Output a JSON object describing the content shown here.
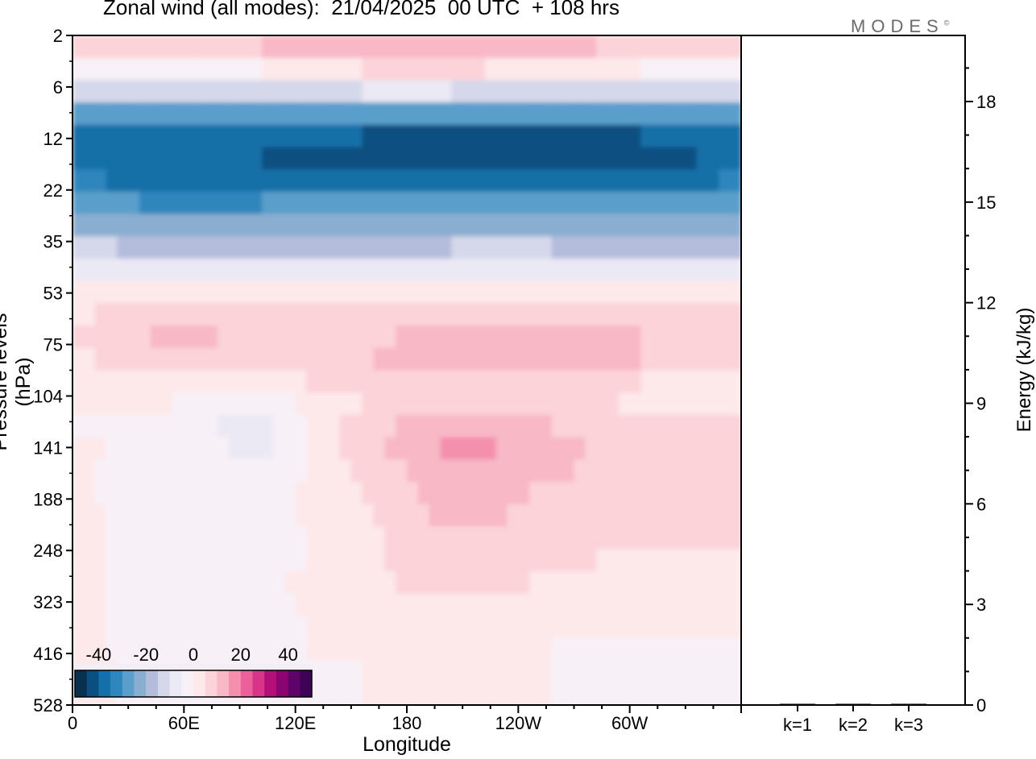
{
  "title": "Zonal wind (all modes):  21/04/2025  00 UTC  + 108 hrs",
  "brand": "MODES",
  "brand_mark": "©",
  "chart_data": [
    {
      "type": "heatmap",
      "title": "Zonal wind (all modes):  21/04/2025  00 UTC  + 108 hrs",
      "xlabel": "Longitude",
      "ylabel": "Pressure levels (hPa)",
      "x_ticks": [
        "0",
        "60E",
        "120E",
        "180",
        "120W",
        "60W"
      ],
      "x_tick_degrees": [
        0,
        60,
        120,
        180,
        240,
        300
      ],
      "x_range_degrees": [
        0,
        360
      ],
      "y_ticks": [
        "2",
        "6",
        "12",
        "22",
        "35",
        "53",
        "75",
        "104",
        "141",
        "188",
        "248",
        "323",
        "416",
        "528"
      ],
      "y_axis": "pressure levels, top to bottom",
      "colorbar": {
        "tick_labels": [
          "-40",
          "-20",
          "0",
          "20",
          "40"
        ],
        "ticks": [
          -40,
          -20,
          0,
          20,
          40
        ],
        "boundaries": [
          -50,
          -45,
          -40,
          -35,
          -30,
          -25,
          -20,
          -15,
          -10,
          -5,
          0,
          5,
          10,
          15,
          20,
          25,
          30,
          35,
          40,
          45,
          50
        ],
        "colors": [
          "#08304f",
          "#0a4f80",
          "#1470a8",
          "#2e86bd",
          "#5a9fcb",
          "#8aaed0",
          "#b4bcdc",
          "#d5d8ea",
          "#ebe9f4",
          "#f7f1f7",
          "#fde8ea",
          "#fbd3d8",
          "#f8b8c6",
          "#f490ae",
          "#ec5f9b",
          "#d83488",
          "#b40f79",
          "#8a0570",
          "#5e036a",
          "#3e0358"
        ],
        "placement": "bottom-left inside plot"
      },
      "field_rows": [
        {
          "level": "2",
          "values": [
            9,
            9,
            10,
            12,
            13,
            11,
            9,
            8
          ]
        },
        {
          "level": "3",
          "values": [
            0,
            -3,
            0,
            5,
            6,
            3,
            0,
            -1
          ]
        },
        {
          "level": "4",
          "values": [
            -12,
            -14,
            -12,
            -10,
            -10,
            -12,
            -14,
            -13
          ]
        },
        {
          "level": "5",
          "values": [
            -26,
            -28,
            -27,
            -26,
            -27,
            -28,
            -29,
            -27
          ]
        },
        {
          "level": "6",
          "values": [
            -36,
            -38,
            -40,
            -40,
            -42,
            -42,
            -40,
            -37
          ]
        },
        {
          "level": "8",
          "values": [
            -36,
            -39,
            -40,
            -41,
            -43,
            -42,
            -42,
            -38
          ]
        },
        {
          "level": "10",
          "values": [
            -33,
            -38,
            -37,
            -36,
            -37,
            -37,
            -38,
            -34
          ]
        },
        {
          "level": "12",
          "values": [
            -28,
            -31,
            -30,
            -26,
            -27,
            -28,
            -30,
            -28
          ]
        },
        {
          "level": "16",
          "values": [
            -22,
            -24,
            -25,
            -23,
            -22,
            -22,
            -24,
            -24
          ]
        },
        {
          "level": "22",
          "values": [
            -14,
            -16,
            -17,
            -16,
            -15,
            -15,
            -16,
            -17
          ]
        },
        {
          "level": "28",
          "values": [
            -6,
            -7,
            -8,
            -8,
            -7,
            -7,
            -8,
            -8
          ]
        },
        {
          "level": "35",
          "values": [
            1,
            2,
            2,
            2,
            2,
            2,
            2,
            1
          ]
        },
        {
          "level": "43",
          "values": [
            4,
            8,
            7,
            6,
            8,
            9,
            8,
            6
          ]
        },
        {
          "level": "53",
          "values": [
            5,
            11,
            9,
            8,
            13,
            12,
            10,
            8
          ]
        },
        {
          "level": "63",
          "values": [
            4,
            9,
            8,
            9,
            14,
            12,
            10,
            7
          ]
        },
        {
          "level": "75",
          "values": [
            3,
            4,
            4,
            6,
            10,
            8,
            5,
            4
          ]
        },
        {
          "level": "88",
          "values": [
            1,
            0,
            -2,
            5,
            9,
            7,
            4,
            4
          ]
        },
        {
          "level": "104",
          "values": [
            0,
            -3,
            -7,
            8,
            14,
            10,
            6,
            6
          ]
        },
        {
          "level": "121",
          "values": [
            1,
            -2,
            -7,
            7,
            17,
            12,
            7,
            7
          ]
        },
        {
          "level": "141",
          "values": [
            1,
            -3,
            -4,
            6,
            15,
            11,
            7,
            6
          ]
        },
        {
          "level": "163",
          "values": [
            1,
            -3,
            -3,
            5,
            13,
            9,
            6,
            5
          ]
        },
        {
          "level": "188",
          "values": [
            2,
            -3,
            -2,
            4,
            12,
            8,
            6,
            6
          ]
        },
        {
          "level": "216",
          "values": [
            2,
            -3,
            -2,
            3,
            10,
            7,
            5,
            6
          ]
        },
        {
          "level": "248",
          "values": [
            2,
            -3,
            -2,
            3,
            10,
            6,
            4,
            4
          ]
        },
        {
          "level": "284",
          "values": [
            2,
            -3,
            -1,
            3,
            8,
            4,
            3,
            3
          ]
        },
        {
          "level": "323",
          "values": [
            2,
            -3,
            -1,
            2,
            5,
            3,
            2,
            1
          ]
        },
        {
          "level": "368",
          "values": [
            1,
            -2,
            -1,
            1,
            3,
            1,
            0,
            0
          ]
        },
        {
          "level": "416",
          "values": [
            1,
            -2,
            -1,
            1,
            2,
            0,
            -1,
            -1
          ]
        },
        {
          "level": "470",
          "values": [
            1,
            -1,
            -1,
            0,
            1,
            0,
            -2,
            -1
          ]
        },
        {
          "level": "528",
          "values": [
            1,
            -1,
            -1,
            0,
            1,
            0,
            -2,
            -1
          ]
        }
      ]
    },
    {
      "type": "bar",
      "ylabel": "Energy (kJ/kg)",
      "categories": [
        "k=1",
        "k=2",
        "k=3"
      ],
      "values": [
        0.02,
        0.01,
        0.01
      ],
      "ylim": [
        0,
        20
      ],
      "y_ticks": [
        "0",
        "3",
        "6",
        "9",
        "12",
        "15",
        "18"
      ],
      "y_tick_values": [
        0,
        3,
        6,
        9,
        12,
        15,
        18
      ],
      "bar_color": "#000000"
    }
  ]
}
